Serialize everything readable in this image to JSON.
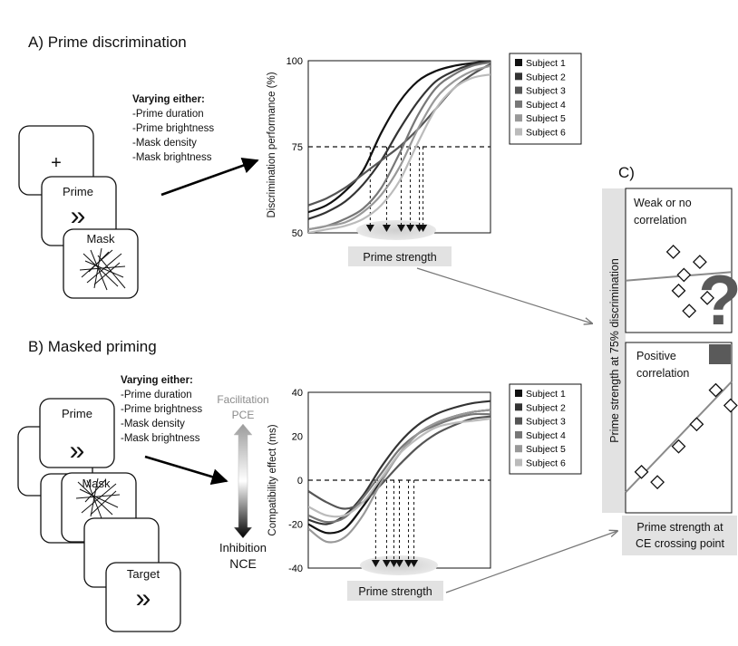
{
  "panels": {
    "a_title": "A) Prime discrimination",
    "b_title": "B) Masked priming",
    "c_title": "C)"
  },
  "varying": {
    "heading": "Varying either:",
    "items": [
      "-Prime duration",
      "-Prime brightness",
      "-Mask density",
      "-Mask brightness"
    ]
  },
  "stimulus_labels": {
    "fixation": "+",
    "prime": "Prime",
    "mask": "Mask",
    "target": "Target",
    "arrows": "»"
  },
  "scale_bar": {
    "top_label_1": "Facilitation",
    "top_label_2": "PCE",
    "bottom_label_1": "Inhibition",
    "bottom_label_2": "NCE",
    "top_color": "#9b9b9b",
    "bottom_color": "#000000"
  },
  "chart_data": [
    {
      "id": "discrimination",
      "type": "line",
      "ylabel": "Discrimination performance (%)",
      "xlabel": "Prime  strength",
      "ylim": [
        50,
        100
      ],
      "yticks": [
        50,
        75,
        100
      ],
      "threshold": 75,
      "x_range": [
        0,
        1
      ],
      "crossings": [
        0.34,
        0.43,
        0.51,
        0.56,
        0.61,
        0.63
      ],
      "legend_position": "top-right",
      "series": [
        {
          "name": "Subject 1",
          "color": "#111111",
          "x": [
            0,
            0.1,
            0.2,
            0.3,
            0.4,
            0.5,
            0.6,
            0.7,
            0.8,
            0.9,
            1.0
          ],
          "y": [
            56,
            58,
            62,
            68,
            79,
            88,
            94,
            97,
            98.5,
            99.3,
            100
          ]
        },
        {
          "name": "Subject 2",
          "color": "#333333",
          "x": [
            0,
            0.1,
            0.2,
            0.3,
            0.4,
            0.5,
            0.6,
            0.7,
            0.8,
            0.9,
            1.0
          ],
          "y": [
            54,
            56,
            59,
            64,
            71,
            80,
            88,
            94,
            97,
            99,
            100
          ]
        },
        {
          "name": "Subject 3",
          "color": "#555555",
          "x": [
            0,
            0.1,
            0.2,
            0.3,
            0.4,
            0.5,
            0.6,
            0.7,
            0.8,
            0.9,
            1.0
          ],
          "y": [
            58,
            60,
            63,
            67,
            71,
            75,
            80,
            86,
            92,
            96,
            99
          ]
        },
        {
          "name": "Subject 4",
          "color": "#777777",
          "x": [
            0,
            0.1,
            0.2,
            0.3,
            0.4,
            0.5,
            0.6,
            0.7,
            0.8,
            0.9,
            1.0
          ],
          "y": [
            51,
            52,
            54,
            57,
            63,
            73,
            84,
            92,
            96,
            98.5,
            99.5
          ]
        },
        {
          "name": "Subject 5",
          "color": "#999999",
          "x": [
            0,
            0.1,
            0.2,
            0.3,
            0.4,
            0.5,
            0.6,
            0.7,
            0.8,
            0.9,
            1.0
          ],
          "y": [
            51,
            52,
            53,
            56,
            61,
            69,
            80,
            89,
            94,
            97,
            98.5
          ]
        },
        {
          "name": "Subject 6",
          "color": "#bbbbbb",
          "x": [
            0,
            0.1,
            0.2,
            0.3,
            0.4,
            0.5,
            0.6,
            0.7,
            0.8,
            0.9,
            1.0
          ],
          "y": [
            50,
            51,
            52,
            54,
            58,
            65,
            76,
            86,
            92,
            95,
            96
          ]
        }
      ]
    },
    {
      "id": "compatibility",
      "type": "line",
      "ylabel": "Compatibility effect  (ms)",
      "xlabel": "Prime strength",
      "ylim": [
        -40,
        40
      ],
      "yticks": [
        -40,
        -20,
        0,
        20,
        40
      ],
      "threshold": 0,
      "x_range": [
        0,
        1
      ],
      "crossings": [
        0.37,
        0.43,
        0.47,
        0.5,
        0.55,
        0.58
      ],
      "legend_position": "top-right",
      "series": [
        {
          "name": "Subject 1",
          "color": "#111111",
          "x": [
            0,
            0.1,
            0.2,
            0.3,
            0.4,
            0.5,
            0.6,
            0.7,
            0.8,
            0.9,
            1.0
          ],
          "y": [
            -20,
            -24,
            -22,
            -12,
            0,
            12,
            21,
            26,
            29,
            31,
            32
          ]
        },
        {
          "name": "Subject 2",
          "color": "#333333",
          "x": [
            0,
            0.1,
            0.2,
            0.3,
            0.4,
            0.5,
            0.6,
            0.7,
            0.8,
            0.9,
            1.0
          ],
          "y": [
            -18,
            -20,
            -16,
            -7,
            6,
            17,
            25,
            30,
            33,
            35,
            36
          ]
        },
        {
          "name": "Subject 3",
          "color": "#555555",
          "x": [
            0,
            0.1,
            0.2,
            0.3,
            0.4,
            0.5,
            0.6,
            0.7,
            0.8,
            0.9,
            1.0
          ],
          "y": [
            -5,
            -10,
            -13,
            -10,
            -2,
            7,
            15,
            21,
            25,
            28,
            29
          ]
        },
        {
          "name": "Subject 4",
          "color": "#777777",
          "x": [
            0,
            0.1,
            0.2,
            0.3,
            0.4,
            0.5,
            0.6,
            0.7,
            0.8,
            0.9,
            1.0
          ],
          "y": [
            -16,
            -19,
            -17,
            -8,
            3,
            14,
            21,
            25,
            28,
            30,
            30
          ]
        },
        {
          "name": "Subject 5",
          "color": "#999999",
          "x": [
            0,
            0.1,
            0.2,
            0.3,
            0.4,
            0.5,
            0.6,
            0.7,
            0.8,
            0.9,
            1.0
          ],
          "y": [
            -22,
            -28,
            -26,
            -16,
            -1,
            12,
            21,
            26,
            29,
            31,
            32
          ]
        },
        {
          "name": "Subject 6",
          "color": "#bbbbbb",
          "x": [
            0,
            0.1,
            0.2,
            0.3,
            0.4,
            0.5,
            0.6,
            0.7,
            0.8,
            0.9,
            1.0
          ],
          "y": [
            -12,
            -16,
            -16,
            -10,
            1,
            12,
            19,
            24,
            26,
            27,
            28
          ]
        }
      ]
    },
    {
      "id": "correlation-weak",
      "type": "scatter",
      "annotation_1": "Weak or no",
      "annotation_2": "correlation",
      "x": [
        0.45,
        0.55,
        0.7,
        0.5,
        0.6,
        0.77
      ],
      "y": [
        0.56,
        0.4,
        0.49,
        0.29,
        0.15,
        0.24
      ],
      "fit": {
        "x": [
          0,
          1
        ],
        "y": [
          0.36,
          0.42
        ]
      }
    },
    {
      "id": "correlation-positive",
      "type": "scatter",
      "annotation_1": "Positive",
      "annotation_2": "correlation",
      "x": [
        0.15,
        0.3,
        0.5,
        0.67,
        0.85,
        0.99
      ],
      "y": [
        0.24,
        0.18,
        0.39,
        0.52,
        0.72,
        0.63
      ],
      "fit": {
        "x": [
          0,
          1
        ],
        "y": [
          0.12,
          0.77
        ]
      }
    }
  ],
  "panel_c": {
    "ylabel": "Prime strength at 75% discrimination",
    "xlabel_1": "Prime strength at",
    "xlabel_2": "CE crossing point",
    "question_mark": "?"
  }
}
